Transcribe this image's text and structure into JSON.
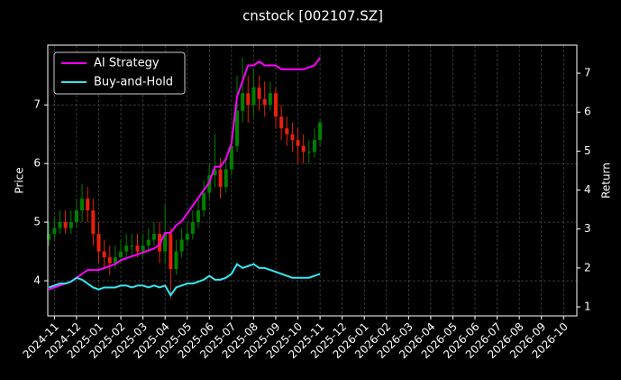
{
  "chart_data": {
    "type": "candlestick",
    "title": "cnstock [002107.SZ]",
    "ylabel": "Price",
    "y2label": "Return",
    "x": [
      -0.25,
      0,
      0.25,
      0.5,
      0.75,
      1,
      1.25,
      1.5,
      1.75,
      2,
      2.25,
      2.5,
      2.75,
      3,
      3.25,
      3.5,
      3.75,
      4,
      4.25,
      4.5,
      4.75,
      5,
      5.25,
      5.5,
      5.75,
      6,
      6.25,
      6.5,
      6.75,
      7,
      7.25,
      7.5,
      7.75,
      8,
      8.25,
      8.5,
      8.75,
      9,
      9.25,
      9.5,
      9.75,
      10,
      10.25,
      10.5,
      10.75,
      11,
      11.25,
      11.5,
      11.75,
      12
    ],
    "open": [
      4.7,
      4.8,
      4.9,
      5.0,
      4.9,
      5.0,
      5.2,
      5.4,
      5.2,
      4.8,
      4.5,
      4.4,
      4.3,
      4.4,
      4.5,
      4.6,
      4.6,
      4.5,
      4.6,
      4.7,
      4.8,
      4.5,
      4.8,
      4.2,
      4.5,
      4.7,
      4.8,
      5.0,
      5.2,
      5.5,
      5.8,
      5.9,
      5.6,
      5.9,
      6.3,
      6.9,
      7.2,
      7.0,
      7.3,
      7.1,
      7.0,
      7.2,
      6.8,
      6.6,
      6.5,
      6.4,
      6.3,
      6.2,
      6.2,
      6.4
    ],
    "high": [
      5.0,
      5.1,
      5.2,
      5.2,
      5.2,
      5.4,
      5.65,
      5.6,
      5.4,
      5.0,
      4.7,
      4.6,
      4.6,
      4.7,
      4.8,
      4.8,
      4.8,
      4.8,
      4.9,
      5.0,
      5.0,
      5.3,
      4.9,
      4.7,
      4.9,
      5.0,
      5.2,
      5.4,
      5.7,
      6.0,
      6.5,
      6.1,
      6.1,
      6.5,
      7.5,
      7.8,
      7.5,
      7.6,
      7.5,
      7.4,
      7.4,
      7.3,
      7.0,
      6.8,
      6.7,
      6.6,
      6.5,
      6.4,
      6.6,
      6.75
    ],
    "low": [
      4.6,
      4.7,
      4.8,
      4.8,
      4.8,
      4.9,
      5.0,
      5.0,
      4.6,
      4.3,
      4.2,
      4.1,
      4.2,
      4.3,
      4.4,
      4.4,
      4.4,
      4.4,
      4.5,
      4.6,
      4.3,
      4.3,
      3.7,
      4.1,
      4.4,
      4.6,
      4.7,
      4.9,
      5.1,
      5.4,
      5.6,
      5.4,
      5.5,
      5.8,
      6.2,
      6.7,
      6.7,
      6.8,
      6.9,
      6.8,
      6.9,
      6.6,
      6.4,
      6.3,
      6.2,
      6.0,
      6.0,
      6.0,
      6.1,
      6.3
    ],
    "close": [
      4.8,
      4.9,
      5.0,
      4.9,
      5.0,
      5.2,
      5.4,
      5.2,
      4.8,
      4.5,
      4.4,
      4.3,
      4.4,
      4.5,
      4.6,
      4.6,
      4.5,
      4.6,
      4.7,
      4.8,
      4.5,
      4.8,
      4.2,
      4.5,
      4.7,
      4.8,
      5.0,
      5.2,
      5.5,
      5.8,
      5.9,
      5.6,
      5.9,
      6.3,
      6.9,
      7.2,
      7.0,
      7.3,
      7.1,
      7.0,
      7.2,
      6.8,
      6.6,
      6.5,
      6.4,
      6.3,
      6.2,
      6.2,
      6.4,
      6.7
    ],
    "up_color": "#008000",
    "down_color": "#e8200c",
    "series": [
      {
        "name": "AI Strategy",
        "color": "#ff00ff",
        "axis": "y2",
        "values": [
          1.45,
          1.5,
          1.55,
          1.6,
          1.65,
          1.75,
          1.85,
          1.95,
          1.95,
          1.95,
          2.0,
          2.05,
          2.1,
          2.2,
          2.25,
          2.3,
          2.35,
          2.4,
          2.45,
          2.5,
          2.6,
          2.9,
          2.9,
          3.1,
          3.2,
          3.4,
          3.6,
          3.8,
          4.0,
          4.2,
          4.6,
          4.6,
          4.8,
          5.2,
          6.4,
          6.8,
          7.2,
          7.2,
          7.3,
          7.2,
          7.2,
          7.2,
          7.1,
          7.1,
          7.1,
          7.1,
          7.1,
          7.15,
          7.2,
          7.4
        ]
      },
      {
        "name": "Buy-and-Hold",
        "color": "#33e8f2",
        "axis": "y2",
        "values": [
          1.5,
          1.55,
          1.6,
          1.6,
          1.65,
          1.75,
          1.7,
          1.6,
          1.5,
          1.45,
          1.5,
          1.5,
          1.5,
          1.55,
          1.55,
          1.5,
          1.55,
          1.55,
          1.5,
          1.55,
          1.5,
          1.55,
          1.3,
          1.5,
          1.55,
          1.6,
          1.6,
          1.65,
          1.7,
          1.8,
          1.7,
          1.7,
          1.75,
          1.85,
          2.1,
          2.0,
          2.05,
          2.1,
          2.0,
          2.0,
          1.95,
          1.9,
          1.85,
          1.8,
          1.75,
          1.75,
          1.75,
          1.75,
          1.8,
          1.85
        ]
      }
    ],
    "xlim": [
      -0.3,
      23.6
    ],
    "xticks": [
      {
        "value": 0,
        "label": "2024-11"
      },
      {
        "value": 1,
        "label": "2024-12"
      },
      {
        "value": 2,
        "label": "2025-01"
      },
      {
        "value": 3,
        "label": "2025-02"
      },
      {
        "value": 4,
        "label": "2025-03"
      },
      {
        "value": 5,
        "label": "2025-04"
      },
      {
        "value": 6,
        "label": "2025-05"
      },
      {
        "value": 7,
        "label": "2025-06"
      },
      {
        "value": 8,
        "label": "2025-07"
      },
      {
        "value": 9,
        "label": "2025-08"
      },
      {
        "value": 10,
        "label": "2025-09"
      },
      {
        "value": 11,
        "label": "2025-10"
      },
      {
        "value": 12,
        "label": "2025-11"
      },
      {
        "value": 13,
        "label": "2025-12"
      },
      {
        "value": 14,
        "label": "2026-01"
      },
      {
        "value": 15,
        "label": "2026-02"
      },
      {
        "value": 16,
        "label": "2026-03"
      },
      {
        "value": 17,
        "label": "2026-04"
      },
      {
        "value": 18,
        "label": "2026-05"
      },
      {
        "value": 19,
        "label": "2026-06"
      },
      {
        "value": 20,
        "label": "2026-07"
      },
      {
        "value": 21,
        "label": "2026-08"
      },
      {
        "value": 22,
        "label": "2026-09"
      },
      {
        "value": 23,
        "label": "2026-10"
      }
    ],
    "ylim": [
      3.4,
      8.02
    ],
    "yticks": [
      4,
      5,
      6,
      7
    ],
    "y2lim": [
      0.77,
      7.72
    ],
    "y2ticks": [
      1,
      2,
      3,
      4,
      5,
      6,
      7
    ],
    "grid": true,
    "legend": "upper left"
  }
}
